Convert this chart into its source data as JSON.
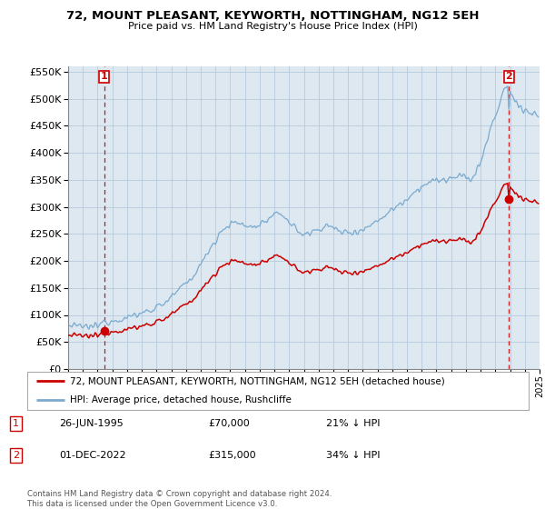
{
  "title": "72, MOUNT PLEASANT, KEYWORTH, NOTTINGHAM, NG12 5EH",
  "subtitle": "Price paid vs. HM Land Registry's House Price Index (HPI)",
  "sale1_date": "26-JUN-1995",
  "sale1_price": 70000,
  "sale1_label": "21% ↓ HPI",
  "sale2_date": "01-DEC-2022",
  "sale2_price": 315000,
  "sale2_label": "34% ↓ HPI",
  "property_label": "72, MOUNT PLEASANT, KEYWORTH, NOTTINGHAM, NG12 5EH (detached house)",
  "hpi_label": "HPI: Average price, detached house, Rushcliffe",
  "property_color": "#cc0000",
  "hpi_color": "#7aaad0",
  "sale1_x": 1995.46,
  "sale2_x": 2022.92,
  "ylim_min": 0,
  "ylim_max": 560000,
  "xlim_min": 1993.0,
  "xlim_max": 2025.0,
  "plot_bg": "#dde8f0",
  "footer": "Contains HM Land Registry data © Crown copyright and database right 2024.\nThis data is licensed under the Open Government Licence v3.0.",
  "background_color": "#ffffff",
  "grid_color": "#b0c4d8"
}
